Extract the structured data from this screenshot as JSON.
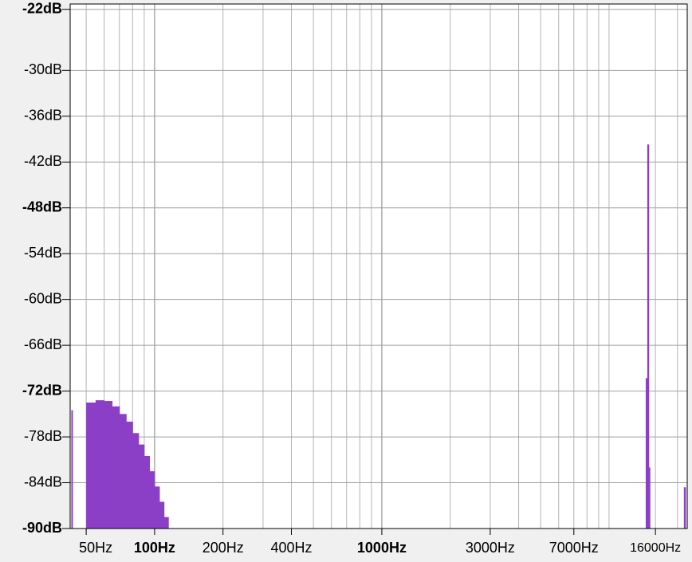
{
  "chart_data": {
    "type": "bar",
    "x_scale": "log",
    "grid": true,
    "color": "#8b3fc6",
    "xlim": [
      42.5,
      22080
    ],
    "ylim": [
      -90,
      -21.3
    ],
    "xticks": [
      {
        "value": 50,
        "label": "50Hz"
      },
      {
        "value": 100,
        "label": "100Hz",
        "bold": true
      },
      {
        "value": 200,
        "label": "200Hz"
      },
      {
        "value": 400,
        "label": "400Hz"
      },
      {
        "value": 1000,
        "label": "1000Hz",
        "bold": true
      },
      {
        "value": 3000,
        "label": "3000Hz"
      },
      {
        "value": 7000,
        "label": "7000Hz"
      },
      {
        "value": 16000,
        "label": "16000Hz",
        "small": true
      }
    ],
    "minor_xticks": [
      60,
      70,
      80,
      90,
      300,
      500,
      600,
      700,
      800,
      900,
      2000,
      4000,
      5000,
      6000,
      8000,
      9000,
      10000,
      20000
    ],
    "yticks": [
      {
        "value": -22,
        "label": "-22dB",
        "bold": true
      },
      {
        "value": -30,
        "label": "-30dB"
      },
      {
        "value": -36,
        "label": "-36dB"
      },
      {
        "value": -42,
        "label": "-42dB"
      },
      {
        "value": -48,
        "label": "-48dB",
        "bold": true
      },
      {
        "value": -54,
        "label": "-54dB"
      },
      {
        "value": -60,
        "label": "-60dB"
      },
      {
        "value": -66,
        "label": "-66dB"
      },
      {
        "value": -72,
        "label": "-72dB",
        "bold": true
      },
      {
        "value": -78,
        "label": "-78dB"
      },
      {
        "value": -84,
        "label": "-84dB"
      },
      {
        "value": -90,
        "label": "-90dB",
        "bold": true
      }
    ],
    "x": [
      43,
      50,
      55,
      60,
      65,
      70,
      75,
      80,
      85,
      90,
      95,
      100,
      105,
      110,
      115,
      120,
      14500,
      14730,
      14950,
      21350
    ],
    "values": [
      -74.5,
      -73.5,
      -73.2,
      -73.3,
      -74,
      -75,
      -76,
      -77.5,
      -79,
      -80.5,
      -82.5,
      -84.5,
      -86.5,
      -88.5,
      -90,
      -91.5,
      -70.3,
      -39.7,
      -82,
      -84.6
    ]
  }
}
